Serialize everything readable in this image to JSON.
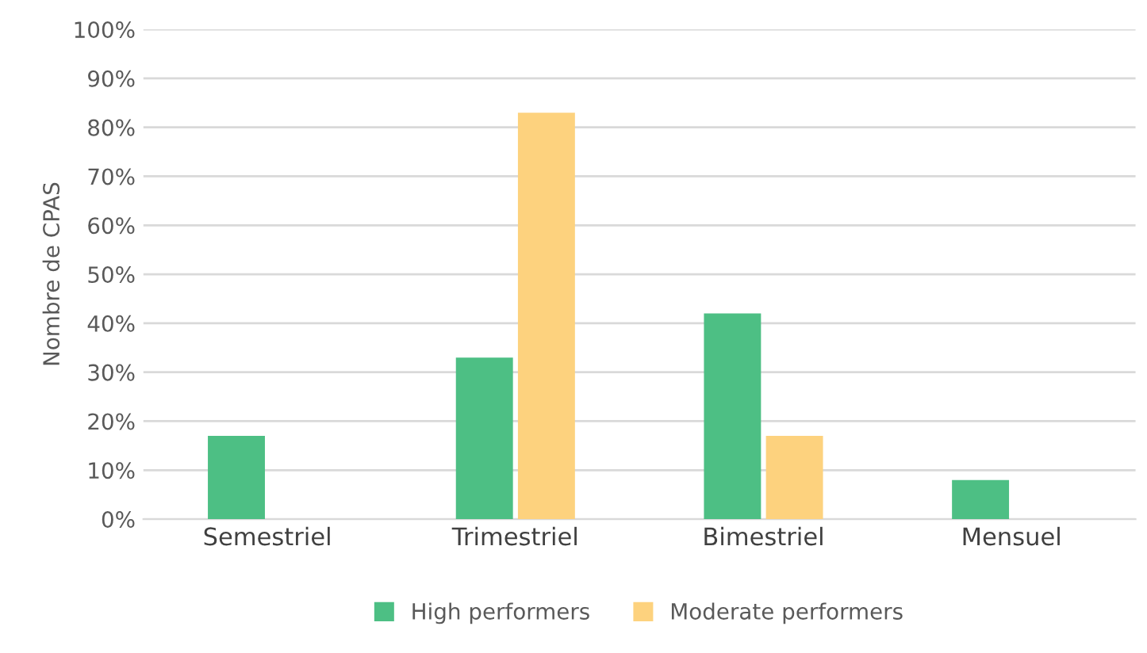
{
  "chart_data": {
    "type": "bar",
    "ylabel": "Nombre de CPAS",
    "categories": [
      "Semestriel",
      "Trimestriel",
      "Bimestriel",
      "Mensuel"
    ],
    "series": [
      {
        "name": "High performers",
        "color": "#4dbf84",
        "values": [
          17,
          33,
          42,
          8
        ]
      },
      {
        "name": "Moderate performers",
        "color": "#fdd27e",
        "values": [
          0,
          83,
          17,
          0
        ]
      }
    ],
    "ylim": [
      0,
      100
    ],
    "yticks": [
      {
        "value": 0,
        "label": "0%"
      },
      {
        "value": 10,
        "label": "10%"
      },
      {
        "value": 20,
        "label": "20%"
      },
      {
        "value": 30,
        "label": "30%"
      },
      {
        "value": 40,
        "label": "40%"
      },
      {
        "value": 50,
        "label": "50%"
      },
      {
        "value": 60,
        "label": "60%"
      },
      {
        "value": 70,
        "label": "70%"
      },
      {
        "value": 80,
        "label": "80%"
      },
      {
        "value": 90,
        "label": "90%"
      },
      {
        "value": 100,
        "label": "100%"
      }
    ],
    "grid": "y",
    "legend": "bottom"
  }
}
